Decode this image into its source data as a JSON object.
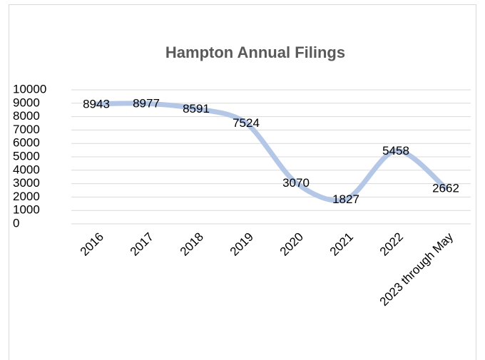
{
  "chart_data": {
    "type": "line",
    "title": "Hampton Annual Filings",
    "categories": [
      "2016",
      "2017",
      "2018",
      "2019",
      "2020",
      "2021",
      "2022",
      "2023 through May"
    ],
    "values": [
      8943,
      8977,
      8591,
      7524,
      3070,
      1827,
      5458,
      2662
    ],
    "color": "#b4c7e7",
    "ylim": [
      0,
      10000
    ],
    "yticks": [
      0,
      1000,
      2000,
      3000,
      4000,
      5000,
      6000,
      7000,
      8000,
      9000,
      10000
    ],
    "grid": true
  }
}
